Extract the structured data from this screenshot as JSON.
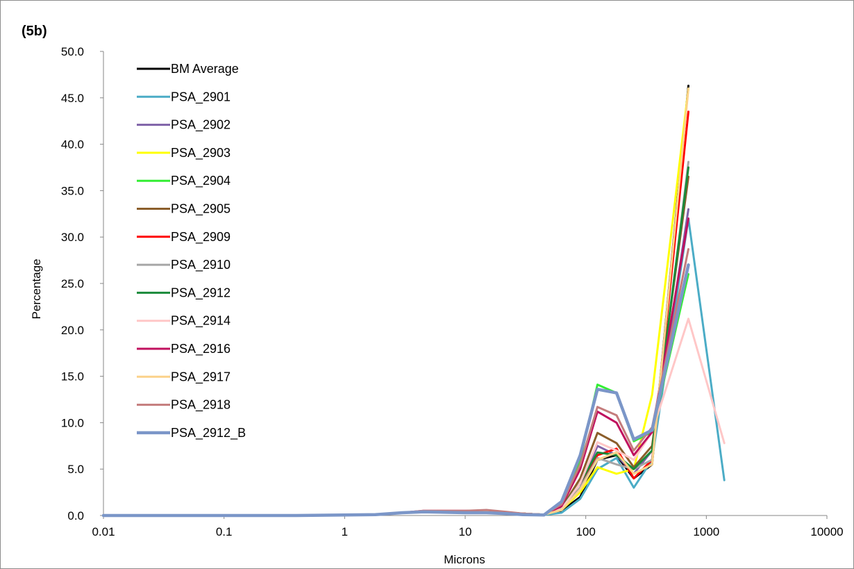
{
  "chart_data": {
    "type": "line",
    "panel_label": "(5b)",
    "title": "",
    "xlabel": "Microns",
    "ylabel": "Percentage",
    "x_scale": "log",
    "xlim": [
      0.01,
      10000
    ],
    "ylim": [
      0,
      50
    ],
    "x_ticks": [
      "0.01",
      "0.1",
      "1",
      "10",
      "100",
      "1000",
      "10000"
    ],
    "y_ticks": [
      "0.0",
      "5.0",
      "10.0",
      "15.0",
      "20.0",
      "25.0",
      "30.0",
      "35.0",
      "40.0",
      "45.0",
      "50.0"
    ],
    "grid": false,
    "legend_position": "top-left",
    "x": [
      0.01,
      0.1,
      0.4,
      1,
      1.8,
      3,
      4.5,
      10,
      15,
      22,
      30,
      45,
      63,
      90,
      125,
      180,
      250,
      355,
      710,
      1410
    ],
    "series": [
      {
        "name": "BM Average",
        "color": "#000000",
        "values": [
          0,
          0,
          0,
          0.05,
          0.1,
          0.3,
          0.4,
          0.4,
          0.4,
          0.3,
          0.2,
          0.1,
          0.5,
          2.0,
          6.0,
          6.5,
          4.0,
          5.5,
          46.3,
          null
        ]
      },
      {
        "name": "PSA_2901",
        "color": "#4bacc6",
        "values": [
          0,
          0,
          0,
          0.05,
          0.1,
          0.3,
          0.4,
          0.3,
          0.3,
          0.2,
          0.1,
          0.05,
          0.3,
          1.8,
          5.0,
          6.2,
          3.0,
          6.0,
          32.0,
          3.8
        ]
      },
      {
        "name": "PSA_2902",
        "color": "#7f62a8",
        "values": [
          0,
          0,
          0,
          0.05,
          0.1,
          0.3,
          0.4,
          0.4,
          0.4,
          0.3,
          0.2,
          0.1,
          0.6,
          3.0,
          7.5,
          6.5,
          4.5,
          7.0,
          33.0,
          null
        ]
      },
      {
        "name": "PSA_2903",
        "color": "#ffff00",
        "values": [
          0,
          0,
          0,
          0.05,
          0.1,
          0.3,
          0.4,
          0.4,
          0.4,
          0.3,
          0.2,
          0.1,
          0.6,
          2.5,
          5.2,
          4.5,
          5.0,
          13.0,
          46.0,
          null
        ]
      },
      {
        "name": "PSA_2904",
        "color": "#33ee33",
        "values": [
          0,
          0,
          0,
          0.05,
          0.1,
          0.3,
          0.4,
          0.4,
          0.4,
          0.3,
          0.2,
          0.1,
          1.0,
          6.0,
          14.1,
          13.2,
          8.0,
          9.0,
          26.0,
          null
        ]
      },
      {
        "name": "PSA_2905",
        "color": "#8b5e2b",
        "values": [
          0,
          0,
          0,
          0.05,
          0.1,
          0.3,
          0.4,
          0.4,
          0.4,
          0.3,
          0.2,
          0.1,
          0.8,
          4.0,
          8.9,
          7.8,
          5.2,
          7.5,
          36.5,
          null
        ]
      },
      {
        "name": "PSA_2909",
        "color": "#ff0000",
        "values": [
          0,
          0,
          0,
          0.05,
          0.1,
          0.3,
          0.4,
          0.4,
          0.4,
          0.3,
          0.2,
          0.1,
          0.7,
          3.5,
          6.5,
          7.2,
          4.0,
          6.0,
          43.5,
          null
        ]
      },
      {
        "name": "PSA_2910",
        "color": "#a6a6a6",
        "values": [
          0,
          0,
          0,
          0.05,
          0.1,
          0.3,
          0.4,
          0.4,
          0.4,
          0.3,
          0.2,
          0.1,
          0.6,
          3.0,
          6.2,
          5.5,
          5.0,
          6.0,
          38.1,
          null
        ]
      },
      {
        "name": "PSA_2912",
        "color": "#1a8a3a",
        "values": [
          0,
          0,
          0,
          0.05,
          0.1,
          0.3,
          0.4,
          0.4,
          0.4,
          0.3,
          0.2,
          0.1,
          0.8,
          3.5,
          6.8,
          6.5,
          5.0,
          7.0,
          37.5,
          null
        ]
      },
      {
        "name": "PSA_2914",
        "color": "#ffc7c7",
        "values": [
          0,
          0,
          0,
          0.05,
          0.1,
          0.3,
          0.4,
          0.4,
          0.4,
          0.3,
          0.2,
          0.1,
          0.7,
          3.5,
          7.9,
          7.0,
          6.0,
          9.0,
          21.2,
          7.8
        ]
      },
      {
        "name": "PSA_2916",
        "color": "#c0105e",
        "values": [
          0,
          0,
          0,
          0.05,
          0.1,
          0.3,
          0.5,
          0.5,
          0.5,
          0.3,
          0.2,
          0.1,
          1.0,
          5.0,
          11.2,
          10.0,
          6.5,
          9.0,
          32.0,
          null
        ]
      },
      {
        "name": "PSA_2917",
        "color": "#fbd28a",
        "values": [
          0,
          0,
          0,
          0.05,
          0.1,
          0.3,
          0.4,
          0.4,
          0.4,
          0.3,
          0.2,
          0.1,
          0.6,
          2.8,
          6.0,
          6.8,
          4.5,
          5.5,
          46.0,
          null
        ]
      },
      {
        "name": "PSA_2918",
        "color": "#c47c7c",
        "values": [
          0,
          0,
          0,
          0.05,
          0.1,
          0.3,
          0.5,
          0.5,
          0.6,
          0.4,
          0.2,
          0.1,
          1.2,
          5.5,
          11.7,
          10.8,
          7.0,
          9.5,
          28.7,
          null
        ]
      },
      {
        "name": "PSA_2912_B",
        "color": "#7b96c8",
        "values": [
          0,
          0,
          0,
          0.05,
          0.1,
          0.3,
          0.4,
          0.3,
          0.3,
          0.2,
          0.1,
          0.05,
          1.5,
          6.5,
          13.6,
          13.2,
          8.2,
          9.2,
          27.0,
          null
        ],
        "thick": true
      }
    ]
  }
}
